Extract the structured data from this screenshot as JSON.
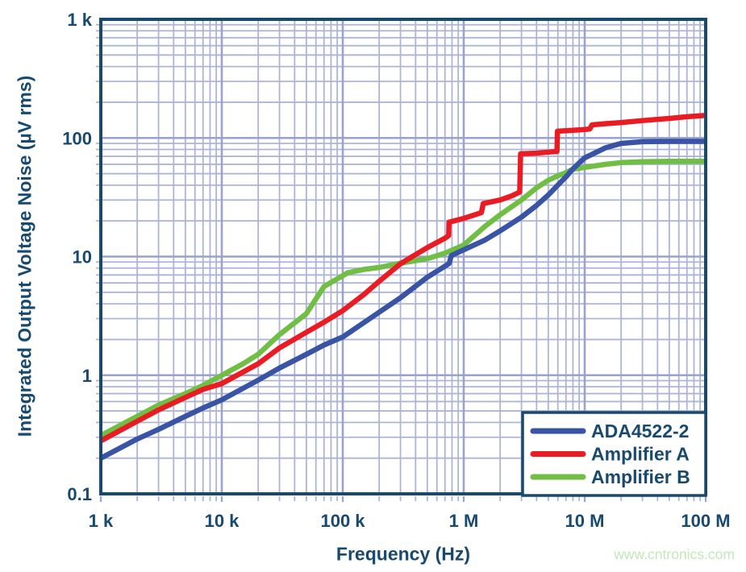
{
  "figure": {
    "background": "#FFFFFF"
  },
  "watermark": {
    "text": "www.cntronics.com",
    "color": "#C3E7B6"
  },
  "chart_data": {
    "type": "line",
    "title": "",
    "xlabel": "Frequency (Hz)",
    "ylabel": "Integrated Output Voltage Noise (µV rms)",
    "x_scale": "log",
    "y_scale": "log",
    "xlim": [
      1000,
      100000000
    ],
    "ylim": [
      0.1,
      1000
    ],
    "grid": true,
    "legend_position": "bottom-right",
    "x_ticks": [
      {
        "value": 1000,
        "label": "1 k"
      },
      {
        "value": 10000,
        "label": "10 k"
      },
      {
        "value": 100000,
        "label": "100 k"
      },
      {
        "value": 1000000,
        "label": "1 M"
      },
      {
        "value": 10000000,
        "label": "10 M"
      },
      {
        "value": 100000000,
        "label": "100 M"
      }
    ],
    "y_ticks": [
      {
        "value": 0.1,
        "label": "0.1"
      },
      {
        "value": 1,
        "label": "1"
      },
      {
        "value": 10,
        "label": "10"
      },
      {
        "value": 100,
        "label": "100"
      },
      {
        "value": 1000,
        "label": "1 k"
      }
    ],
    "colors": {
      "axis": "#18496F",
      "grid_major": "#9AA2CE",
      "grid_minor": "#AEB4D8",
      "legend_border": "#18496F",
      "legend_background": "#FFFFFF"
    },
    "series": [
      {
        "name": "ADA4522-2",
        "color": "#3A54A5",
        "points": [
          [
            1000,
            0.2
          ],
          [
            2000,
            0.29
          ],
          [
            3000,
            0.35
          ],
          [
            5000,
            0.45
          ],
          [
            7000,
            0.53
          ],
          [
            10000,
            0.62
          ],
          [
            20000,
            0.91
          ],
          [
            30000,
            1.15
          ],
          [
            50000,
            1.5
          ],
          [
            70000,
            1.8
          ],
          [
            100000,
            2.1
          ],
          [
            200000,
            3.4
          ],
          [
            300000,
            4.5
          ],
          [
            500000,
            6.7
          ],
          [
            700000,
            8.3
          ],
          [
            760000,
            8.8
          ],
          [
            790000,
            10.2
          ],
          [
            1000000,
            11.4
          ],
          [
            1500000,
            13.8
          ],
          [
            2000000,
            16.5
          ],
          [
            3000000,
            21.5
          ],
          [
            4000000,
            27
          ],
          [
            5000000,
            33
          ],
          [
            6000000,
            40
          ],
          [
            7000000,
            47
          ],
          [
            8000000,
            55
          ],
          [
            10000000,
            68
          ],
          [
            15000000,
            83
          ],
          [
            20000000,
            90
          ],
          [
            30000000,
            93
          ],
          [
            50000000,
            93.5
          ],
          [
            100000000,
            93.5
          ]
        ]
      },
      {
        "name": "Amplifier A",
        "color": "#EA1C23",
        "points": [
          [
            1000,
            0.28
          ],
          [
            2000,
            0.41
          ],
          [
            3000,
            0.51
          ],
          [
            5000,
            0.65
          ],
          [
            7000,
            0.76
          ],
          [
            10000,
            0.85
          ],
          [
            20000,
            1.25
          ],
          [
            30000,
            1.7
          ],
          [
            50000,
            2.3
          ],
          [
            70000,
            2.8
          ],
          [
            100000,
            3.5
          ],
          [
            150000,
            4.8
          ],
          [
            200000,
            6.2
          ],
          [
            300000,
            8.7
          ],
          [
            400000,
            10.4
          ],
          [
            500000,
            11.9
          ],
          [
            700000,
            14.3
          ],
          [
            750000,
            15.0
          ],
          [
            755000,
            19.5
          ],
          [
            1000000,
            21
          ],
          [
            1400000,
            23.5
          ],
          [
            1450000,
            28
          ],
          [
            2000000,
            30
          ],
          [
            2500000,
            32.5
          ],
          [
            2900000,
            35
          ],
          [
            2950000,
            73.5
          ],
          [
            4000000,
            74.5
          ],
          [
            5000000,
            76
          ],
          [
            5900000,
            77
          ],
          [
            5950000,
            114
          ],
          [
            8000000,
            116
          ],
          [
            10000000,
            118
          ],
          [
            11000000,
            119
          ],
          [
            11500000,
            129
          ],
          [
            15000000,
            132
          ],
          [
            20000000,
            135
          ],
          [
            30000000,
            140
          ],
          [
            50000000,
            146
          ],
          [
            70000000,
            151
          ],
          [
            100000000,
            155
          ]
        ]
      },
      {
        "name": "Amplifier B",
        "color": "#70BF44",
        "points": [
          [
            1000,
            0.31
          ],
          [
            2000,
            0.45
          ],
          [
            3000,
            0.56
          ],
          [
            5000,
            0.7
          ],
          [
            7000,
            0.82
          ],
          [
            10000,
            1.0
          ],
          [
            15000,
            1.25
          ],
          [
            20000,
            1.5
          ],
          [
            30000,
            2.2
          ],
          [
            50000,
            3.3
          ],
          [
            70000,
            5.6
          ],
          [
            100000,
            6.9
          ],
          [
            110000,
            7.3
          ],
          [
            150000,
            7.8
          ],
          [
            200000,
            8.1
          ],
          [
            300000,
            8.8
          ],
          [
            500000,
            9.6
          ],
          [
            700000,
            10.7
          ],
          [
            1000000,
            12.5
          ],
          [
            1500000,
            18
          ],
          [
            2000000,
            22.5
          ],
          [
            3000000,
            30
          ],
          [
            4000000,
            38
          ],
          [
            5000000,
            44
          ],
          [
            6000000,
            48
          ],
          [
            7000000,
            51
          ],
          [
            7500000,
            53
          ],
          [
            8000000,
            54.5
          ],
          [
            10000000,
            56.5
          ],
          [
            15000000,
            60
          ],
          [
            20000000,
            62
          ],
          [
            30000000,
            63
          ],
          [
            50000000,
            63.5
          ],
          [
            100000000,
            63.5
          ]
        ]
      }
    ]
  }
}
